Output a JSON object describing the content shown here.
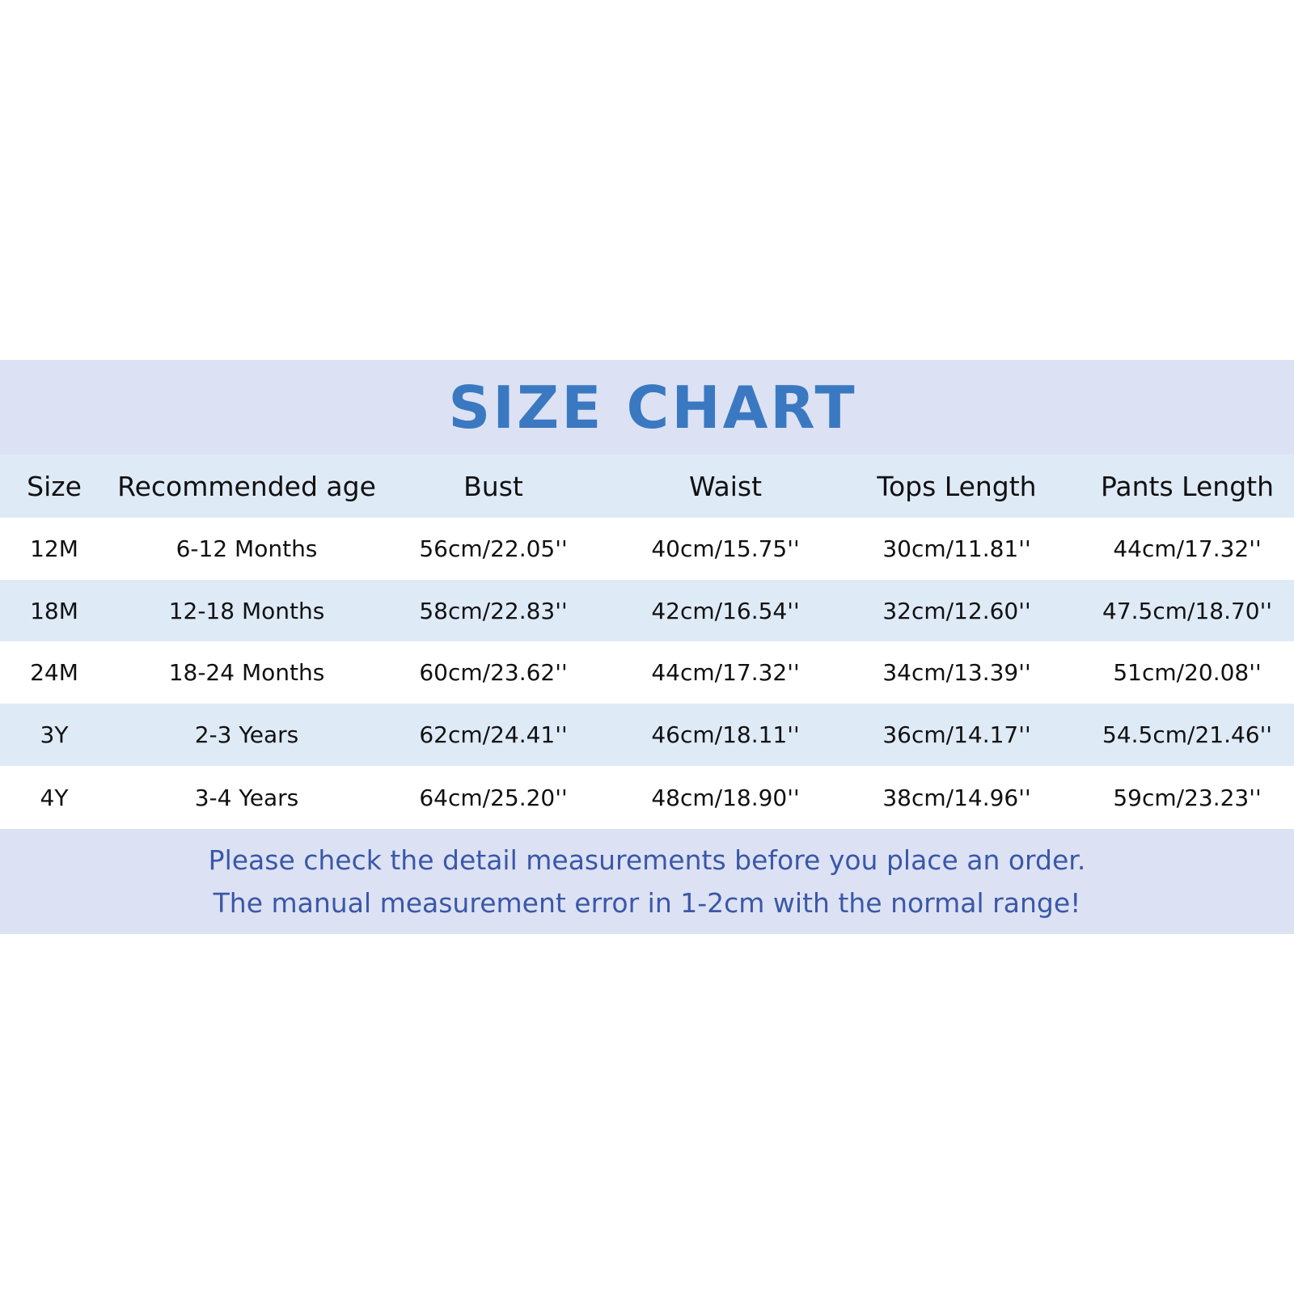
{
  "title": "SIZE CHART",
  "colors": {
    "title": "#3a79c1",
    "footer_text": "#3b57a8",
    "band": "#dce2f3",
    "row_stripe": "#dfeaf7"
  },
  "table": {
    "headers": [
      "Size",
      "Recommended age",
      "Bust",
      "Waist",
      "Tops Length",
      "Pants Length"
    ],
    "rows": [
      [
        "12M",
        "6-12 Months",
        "56cm/22.05''",
        "40cm/15.75''",
        "30cm/11.81''",
        "44cm/17.32''"
      ],
      [
        "18M",
        "12-18 Months",
        "58cm/22.83''",
        "42cm/16.54''",
        "32cm/12.60''",
        "47.5cm/18.70''"
      ],
      [
        "24M",
        "18-24 Months",
        "60cm/23.62''",
        "44cm/17.32''",
        "34cm/13.39''",
        "51cm/20.08''"
      ],
      [
        "3Y",
        "2-3 Years",
        "62cm/24.41''",
        "46cm/18.11''",
        "36cm/14.17''",
        "54.5cm/21.46''"
      ],
      [
        "4Y",
        "3-4 Years",
        "64cm/25.20''",
        "48cm/18.90''",
        "38cm/14.96''",
        "59cm/23.23''"
      ]
    ]
  },
  "footer": {
    "line1": "Please check the detail measurements before you place an order.",
    "line2": "The manual measurement error in 1-2cm with the normal range!"
  }
}
